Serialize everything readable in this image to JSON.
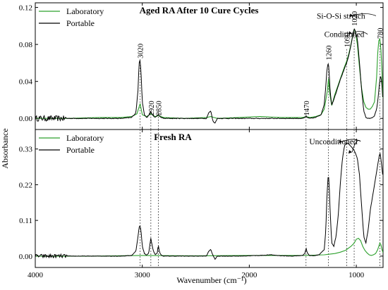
{
  "chart_data": {
    "type": "line",
    "xlabel": "Wavenumber (cm⁻¹)",
    "ylabel": "Absorbance",
    "xlim": [
      4000,
      750
    ],
    "xticks": [
      4000,
      3000,
      2000,
      1000
    ],
    "shared_peak_lines": [
      3020,
      2920,
      2850,
      1470,
      1260,
      1090,
      1020,
      780
    ],
    "colors": {
      "laboratory": "#2ca02c",
      "portable": "#000000"
    },
    "panels": [
      {
        "id": "aged",
        "title": "Aged RA After 10 Cure Cycles",
        "ylim": [
          -0.012,
          0.125
        ],
        "yticks": [
          0.0,
          0.04,
          0.08,
          0.12
        ],
        "ytick_labels": [
          "0.00",
          "0.04",
          "0.08",
          "0.12"
        ],
        "legend": [
          "Laboratory",
          "Portable"
        ],
        "peak_labels": [
          {
            "text": "3020",
            "x": 3020,
            "y": 0.065
          },
          {
            "text": "2920",
            "x": 2920,
            "y": 0.003
          },
          {
            "text": "2850",
            "x": 2850,
            "y": 0.003
          },
          {
            "text": "1470",
            "x": 1470,
            "y": 0.003
          },
          {
            "text": "1260",
            "x": 1260,
            "y": 0.063
          },
          {
            "text": "1090",
            "x": 1090,
            "y": 0.077
          },
          {
            "text": "1020",
            "x": 1020,
            "y": 0.1
          },
          {
            "text": "780",
            "x": 780,
            "y": 0.086
          }
        ],
        "annotations": [
          {
            "text": "Si-O-Si stretch",
            "x": 1370,
            "y": 0.108,
            "arrow_to": [
              1030,
              0.111
            ]
          },
          {
            "text": "Conditioned",
            "x": 1300,
            "y": 0.088,
            "arrow_to": [
              1040,
              0.092
            ]
          }
        ],
        "series": [
          {
            "name": "Laboratory",
            "color": "#2ca02c",
            "x": [
              4000,
              3700,
              3400,
              3200,
              3100,
              3050,
              3020,
              3000,
              2960,
              2920,
              2880,
              2850,
              2800,
              2600,
              2400,
              2360,
              2330,
              2300,
              2100,
              1900,
              1700,
              1600,
              1500,
              1470,
              1430,
              1380,
              1330,
              1300,
              1270,
              1260,
              1250,
              1230,
              1200,
              1170,
              1140,
              1110,
              1090,
              1070,
              1050,
              1030,
              1020,
              1010,
              990,
              970,
              950,
              930,
              910,
              890,
              870,
              850,
              830,
              810,
              800,
              790,
              780,
              770,
              760,
              750
            ],
            "y": [
              0.0,
              0.0,
              0.001,
              0.001,
              0.002,
              0.005,
              0.016,
              0.004,
              0.002,
              0.005,
              0.002,
              0.003,
              0.001,
              0.0,
              0.001,
              0.002,
              0.001,
              0.0,
              0.001,
              0.002,
              0.001,
              0.001,
              0.001,
              0.002,
              0.001,
              0.002,
              0.004,
              0.01,
              0.03,
              0.043,
              0.028,
              0.014,
              0.026,
              0.036,
              0.046,
              0.056,
              0.062,
              0.07,
              0.08,
              0.092,
              0.096,
              0.094,
              0.08,
              0.055,
              0.032,
              0.018,
              0.012,
              0.01,
              0.01,
              0.013,
              0.018,
              0.045,
              0.07,
              0.084,
              0.086,
              0.074,
              0.05,
              0.022
            ]
          },
          {
            "name": "Portable",
            "color": "#000000",
            "noise": true,
            "noise_amp": 0.003,
            "noise_until": 3700,
            "x": [
              4000,
              3900,
              3800,
              3700,
              3600,
              3400,
              3200,
              3100,
              3060,
              3040,
              3030,
              3020,
              3010,
              3000,
              2980,
              2960,
              2940,
              2920,
              2900,
              2880,
              2860,
              2850,
              2840,
              2800,
              2600,
              2400,
              2380,
              2360,
              2340,
              2320,
              2300,
              2100,
              1900,
              1700,
              1500,
              1480,
              1470,
              1460,
              1440,
              1380,
              1330,
              1300,
              1285,
              1275,
              1265,
              1260,
              1255,
              1245,
              1230,
              1200,
              1170,
              1140,
              1110,
              1090,
              1070,
              1050,
              1030,
              1020,
              1010,
              990,
              970,
              950,
              930,
              910,
              890,
              870,
              850,
              830,
              810,
              800,
              790,
              780,
              770,
              760,
              750
            ],
            "y": [
              0.0,
              0.0,
              0.0,
              0.0,
              0.0,
              0.0,
              0.0,
              0.001,
              0.006,
              0.03,
              0.06,
              0.064,
              0.045,
              0.018,
              0.004,
              0.001,
              0.003,
              0.007,
              0.003,
              0.001,
              0.003,
              0.005,
              0.002,
              0.0,
              0.0,
              0.0,
              0.006,
              0.008,
              -0.003,
              -0.005,
              0.0,
              0.0,
              0.0,
              0.0,
              0.0,
              0.001,
              0.003,
              0.001,
              0.0,
              0.001,
              0.004,
              0.015,
              0.035,
              0.052,
              0.059,
              0.06,
              0.052,
              0.03,
              0.014,
              0.024,
              0.035,
              0.045,
              0.054,
              0.06,
              0.068,
              0.079,
              0.092,
              0.097,
              0.095,
              0.086,
              0.06,
              0.03,
              0.008,
              0.001,
              0.0,
              0.0,
              0.001,
              0.003,
              0.01,
              0.018,
              0.03,
              0.042,
              0.046,
              0.035,
              0.015
            ]
          }
        ]
      },
      {
        "id": "fresh",
        "title": "Fresh RA",
        "ylim": [
          -0.035,
          0.39
        ],
        "yticks": [
          0.0,
          0.11,
          0.22,
          0.33
        ],
        "ytick_labels": [
          "0.00",
          "0.11",
          "0.22",
          "0.33"
        ],
        "legend": [
          "Laboratory",
          "Portable"
        ],
        "peak_labels": [],
        "annotations": [
          {
            "text": "Unconditioned",
            "x": 1440,
            "y": 0.345,
            "arrow_to": [
              1130,
              0.352
            ],
            "arrow_to_2": [
              1040,
              0.32
            ]
          }
        ],
        "series": [
          {
            "name": "Laboratory",
            "color": "#2ca02c",
            "x": [
              4000,
              3500,
              3000,
              2500,
              2000,
              1500,
              1400,
              1300,
              1250,
              1200,
              1150,
              1100,
              1050,
              1020,
              1000,
              980,
              960,
              940,
              920,
              900,
              880,
              860,
              840,
              820,
              800,
              790,
              780,
              770,
              760,
              750
            ],
            "y": [
              0.0,
              0.0,
              0.002,
              0.001,
              0.002,
              0.002,
              0.003,
              0.004,
              0.006,
              0.008,
              0.012,
              0.018,
              0.03,
              0.04,
              0.052,
              0.055,
              0.048,
              0.03,
              0.018,
              0.01,
              0.004,
              0.002,
              0.004,
              0.008,
              0.02,
              0.03,
              0.04,
              0.035,
              0.02,
              0.01
            ]
          },
          {
            "name": "Portable",
            "color": "#000000",
            "noise": true,
            "noise_amp": 0.006,
            "noise_until": 3700,
            "x": [
              4000,
              3900,
              3800,
              3700,
              3600,
              3400,
              3200,
              3100,
              3060,
              3040,
              3030,
              3020,
              3010,
              3000,
              2980,
              2960,
              2940,
              2920,
              2900,
              2880,
              2860,
              2850,
              2840,
              2820,
              2800,
              2600,
              2400,
              2380,
              2360,
              2340,
              2320,
              2300,
              2100,
              1900,
              1800,
              1700,
              1600,
              1500,
              1480,
              1470,
              1460,
              1440,
              1400,
              1350,
              1300,
              1285,
              1275,
              1265,
              1260,
              1255,
              1245,
              1230,
              1210,
              1190,
              1170,
              1150,
              1130,
              1110,
              1090,
              1070,
              1050,
              1030,
              1020,
              1010,
              990,
              970,
              950,
              930,
              910,
              890,
              870,
              850,
              830,
              810,
              800,
              790,
              780,
              770,
              760,
              750
            ],
            "y": [
              0.0,
              0.0,
              0.0,
              0.0,
              0.0,
              0.0,
              0.0,
              0.002,
              0.015,
              0.06,
              0.088,
              0.095,
              0.07,
              0.03,
              0.008,
              0.003,
              0.01,
              0.055,
              0.02,
              0.004,
              0.01,
              0.035,
              0.012,
              0.002,
              0.0,
              0.0,
              0.0,
              0.015,
              0.02,
              0.003,
              -0.01,
              0.0,
              0.0,
              0.002,
              0.004,
              0.001,
              0.0,
              0.002,
              0.01,
              0.025,
              0.012,
              0.002,
              0.001,
              0.004,
              0.02,
              0.08,
              0.18,
              0.24,
              0.25,
              0.23,
              0.14,
              0.04,
              0.03,
              0.06,
              0.12,
              0.22,
              0.3,
              0.34,
              0.35,
              0.345,
              0.338,
              0.33,
              0.325,
              0.318,
              0.3,
              0.25,
              0.15,
              0.06,
              0.04,
              0.08,
              0.14,
              0.18,
              0.22,
              0.26,
              0.28,
              0.3,
              0.32,
              0.3,
              0.27,
              0.24
            ]
          }
        ]
      }
    ]
  }
}
